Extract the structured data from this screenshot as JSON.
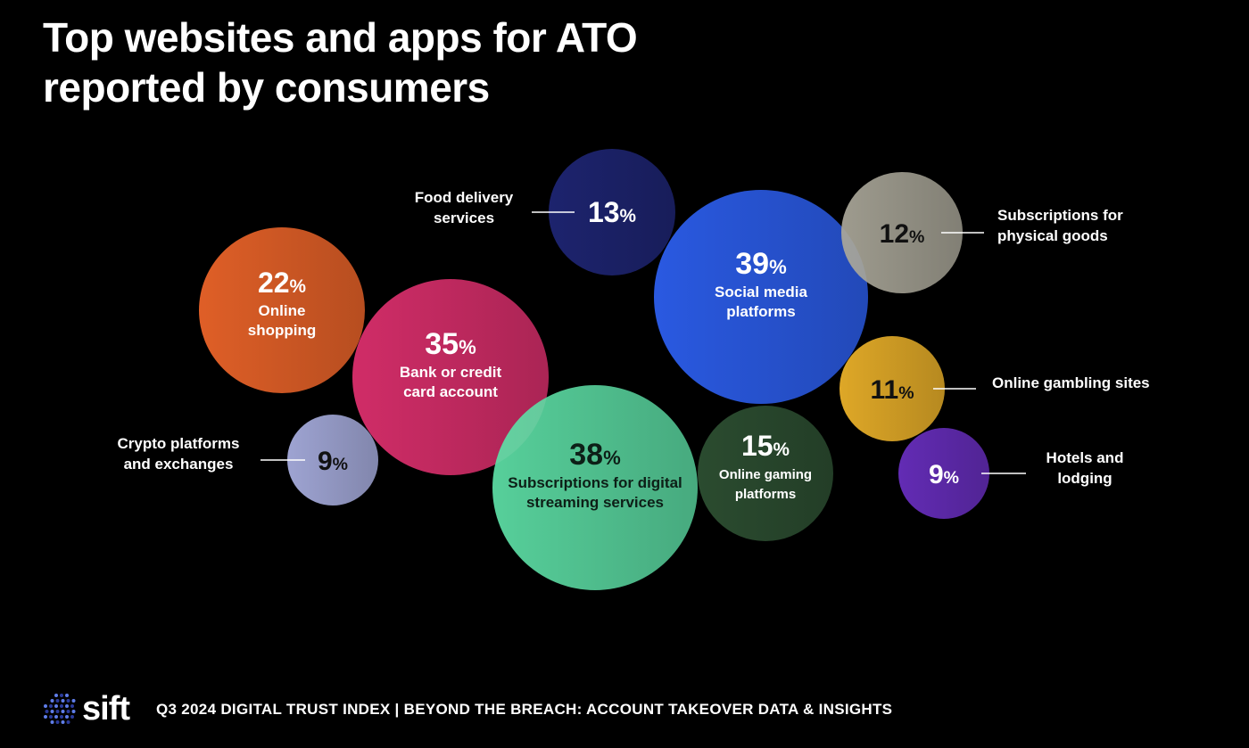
{
  "chart_data": {
    "type": "bubble",
    "title": "Top websites and apps for ATO reported by consumers",
    "unit": "%",
    "points": [
      {
        "label": "Online shopping",
        "value": 22,
        "color": "#f0662a",
        "text_color": "#ffffff",
        "label_position": "inside"
      },
      {
        "label": "Bank or credit card account",
        "value": 35,
        "color": "#e0306f",
        "text_color": "#ffffff",
        "label_position": "inside"
      },
      {
        "label": "Crypto platforms and exchanges",
        "value": 9,
        "color": "#aab0e2",
        "text_color": "#111111",
        "label_position": "left"
      },
      {
        "label": "Food delivery services",
        "value": 13,
        "color": "#1f2676",
        "text_color": "#ffffff",
        "label_position": "left"
      },
      {
        "label": "Social media platforms",
        "value": 39,
        "color": "#2d60f2",
        "text_color": "#ffffff",
        "label_position": "inside"
      },
      {
        "label": "Subscriptions for physical goods",
        "value": 12,
        "color": "#aaa799",
        "text_color": "#111111",
        "label_position": "right"
      },
      {
        "label": "Online gambling sites",
        "value": 11,
        "color": "#efb42a",
        "text_color": "#111111",
        "label_position": "right"
      },
      {
        "label": "Hotels and lodging",
        "value": 9,
        "color": "#6a2fc2",
        "text_color": "#ffffff",
        "label_position": "right"
      },
      {
        "label": "Subscriptions for digital streaming services",
        "value": 38,
        "color": "#5ddfa6",
        "text_color": "#0d1f17",
        "label_position": "inside"
      },
      {
        "label": "Online gaming platforms",
        "value": 15,
        "color": "#2e5133",
        "text_color": "#ffffff",
        "label_position": "inside"
      }
    ]
  },
  "header": {
    "title": "Top websites and apps for ATO reported by consumers"
  },
  "footer": {
    "logo": "sift",
    "text": "Q3 2024 DIGITAL TRUST INDEX | BEYOND THE BREACH: ACCOUNT TAKEOVER DATA & INSIGHTS"
  }
}
